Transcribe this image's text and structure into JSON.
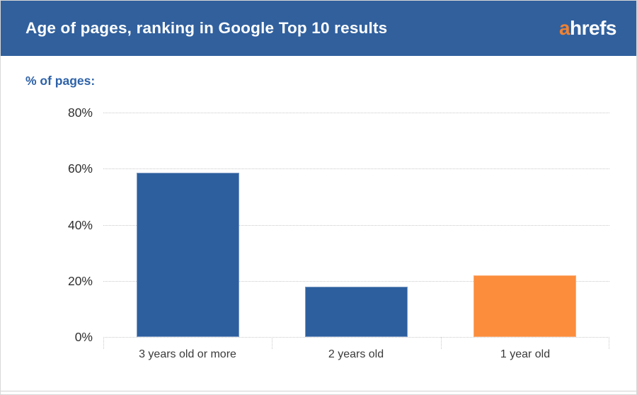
{
  "header": {
    "title": "Age of pages, ranking in Google Top 10 results",
    "logo": {
      "prefix": "a",
      "suffix": "hrefs"
    }
  },
  "chart_data": {
    "type": "bar",
    "title": "Age of pages, ranking in Google Top 10 results",
    "ylabel": "% of pages:",
    "xlabel": "",
    "categories": [
      "3 years old or more",
      "2 years old",
      "1 year old"
    ],
    "values": [
      58.5,
      18,
      22
    ],
    "bar_colors": [
      "#2d5f9e",
      "#2d5f9e",
      "#fb8d3c"
    ],
    "bar_border_colors": [
      "#7b99c4",
      "#7b99c4",
      "#fcab72"
    ],
    "ylim": [
      0,
      80
    ],
    "yticks": [
      0,
      20,
      40,
      60,
      80
    ],
    "ytick_labels": [
      "0%",
      "20%",
      "40%",
      "60%",
      "80%"
    ],
    "grid": "horizontal-dotted",
    "legend": "none"
  },
  "colors": {
    "header_bg": "#31609d",
    "logo_orange": "#f08232",
    "ylabel_blue": "#2e62a8",
    "axis_text": "#2f2f2f",
    "grid": "#c9c9c9"
  }
}
